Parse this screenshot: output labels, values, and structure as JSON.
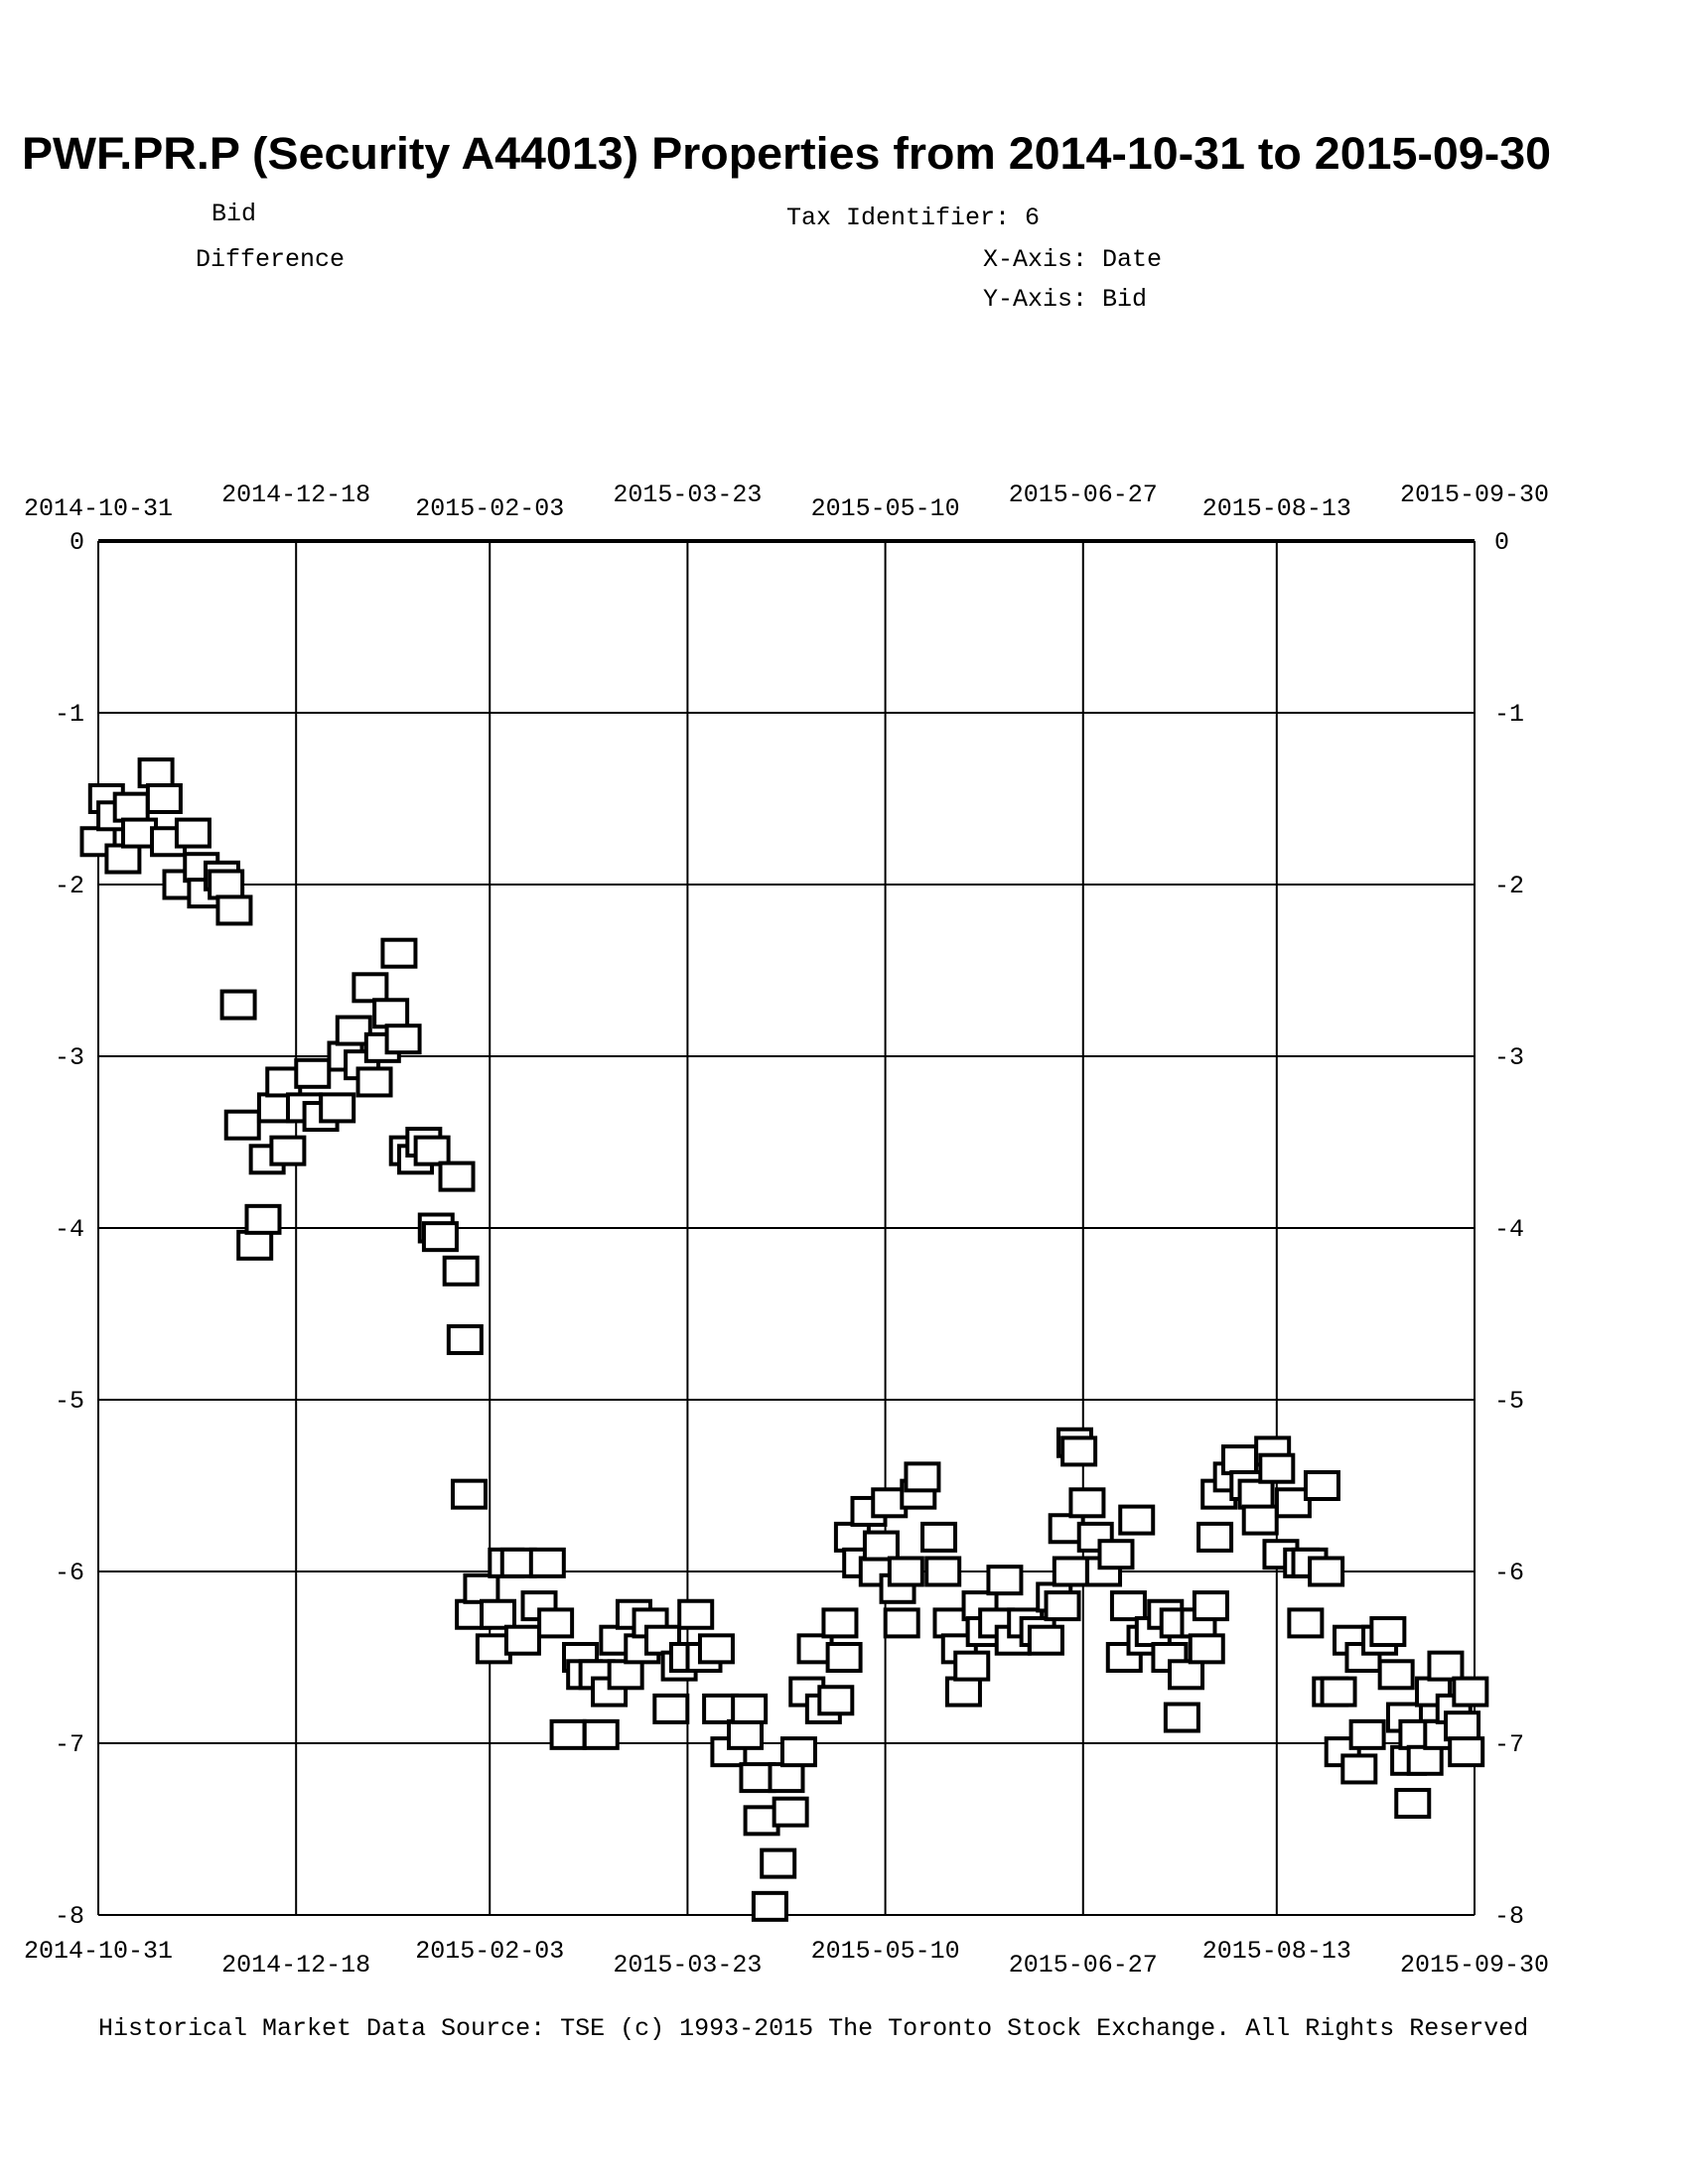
{
  "chart_data": {
    "type": "scatter",
    "title": "PWF.PR.P (Security A44013) Properties from 2014-10-31 to 2015-09-30",
    "series_label_top": "Bid",
    "series_label": "Difference",
    "tax_identifier": "Tax Identifier: 6",
    "xlabel": "X-Axis: Date",
    "ylabel": "Y-Axis:  Bid",
    "footer": "Historical Market Data Source: TSE (c) 1993-2015 The Toronto Stock Exchange. All Rights Reserved",
    "xlim": [
      "2014-10-31",
      "2015-09-30"
    ],
    "ylim": [
      -8,
      0
    ],
    "x_ticks": [
      "2014-10-31",
      "2014-12-18",
      "2015-02-03",
      "2015-03-23",
      "2015-05-10",
      "2015-06-27",
      "2015-08-13",
      "2015-09-30"
    ],
    "y_ticks": [
      "0",
      "-1",
      "-2",
      "-3",
      "-4",
      "-5",
      "-6",
      "-7",
      "-8"
    ],
    "grid": true,
    "marker": "hollow-square",
    "marker_color": "#000000",
    "points": [
      [
        "2014-10-31",
        -1.75
      ],
      [
        "2014-11-02",
        -1.5
      ],
      [
        "2014-11-04",
        -1.6
      ],
      [
        "2014-11-06",
        -1.85
      ],
      [
        "2014-11-08",
        -1.55
      ],
      [
        "2014-11-10",
        -1.7
      ],
      [
        "2014-11-14",
        -1.35
      ],
      [
        "2014-11-16",
        -1.5
      ],
      [
        "2014-11-17",
        -1.75
      ],
      [
        "2014-11-20",
        -2.0
      ],
      [
        "2014-11-23",
        -1.7
      ],
      [
        "2014-11-25",
        -1.9
      ],
      [
        "2014-11-26",
        -2.05
      ],
      [
        "2014-11-30",
        -1.95
      ],
      [
        "2014-12-01",
        -2.0
      ],
      [
        "2014-12-03",
        -2.15
      ],
      [
        "2014-12-04",
        -2.7
      ],
      [
        "2014-12-05",
        -3.4
      ],
      [
        "2014-12-08",
        -4.1
      ],
      [
        "2014-12-10",
        -3.95
      ],
      [
        "2014-12-11",
        -3.6
      ],
      [
        "2014-12-13",
        -3.3
      ],
      [
        "2014-12-15",
        -3.15
      ],
      [
        "2014-12-16",
        -3.55
      ],
      [
        "2014-12-20",
        -3.3
      ],
      [
        "2014-12-22",
        -3.1
      ],
      [
        "2014-12-24",
        -3.35
      ],
      [
        "2014-12-28",
        -3.3
      ],
      [
        "2014-12-30",
        -3.0
      ],
      [
        "2015-01-01",
        -2.85
      ],
      [
        "2015-01-03",
        -3.05
      ],
      [
        "2015-01-05",
        -2.6
      ],
      [
        "2015-01-06",
        -3.15
      ],
      [
        "2015-01-08",
        -2.95
      ],
      [
        "2015-01-10",
        -2.75
      ],
      [
        "2015-01-12",
        -2.4
      ],
      [
        "2015-01-13",
        -2.9
      ],
      [
        "2015-01-14",
        -3.55
      ],
      [
        "2015-01-16",
        -3.6
      ],
      [
        "2015-01-18",
        -3.5
      ],
      [
        "2015-01-20",
        -3.55
      ],
      [
        "2015-01-21",
        -4.0
      ],
      [
        "2015-01-22",
        -4.05
      ],
      [
        "2015-01-26",
        -3.7
      ],
      [
        "2015-01-27",
        -4.25
      ],
      [
        "2015-01-28",
        -4.65
      ],
      [
        "2015-01-29",
        -5.55
      ],
      [
        "2015-01-30",
        -6.25
      ],
      [
        "2015-02-01",
        -6.1
      ],
      [
        "2015-02-04",
        -6.45
      ],
      [
        "2015-02-05",
        -6.25
      ],
      [
        "2015-02-07",
        -5.95
      ],
      [
        "2015-02-10",
        -5.95
      ],
      [
        "2015-02-11",
        -6.4
      ],
      [
        "2015-02-15",
        -6.2
      ],
      [
        "2015-02-17",
        -5.95
      ],
      [
        "2015-02-19",
        -6.3
      ],
      [
        "2015-02-22",
        -6.95
      ],
      [
        "2015-02-25",
        -6.5
      ],
      [
        "2015-02-26",
        -6.6
      ],
      [
        "2015-03-01",
        -6.6
      ],
      [
        "2015-03-02",
        -6.95
      ],
      [
        "2015-03-04",
        -6.7
      ],
      [
        "2015-03-06",
        -6.4
      ],
      [
        "2015-03-08",
        -6.6
      ],
      [
        "2015-03-10",
        -6.25
      ],
      [
        "2015-03-12",
        -6.45
      ],
      [
        "2015-03-14",
        -6.3
      ],
      [
        "2015-03-17",
        -6.4
      ],
      [
        "2015-03-19",
        -6.8
      ],
      [
        "2015-03-21",
        -6.55
      ],
      [
        "2015-03-23",
        -6.5
      ],
      [
        "2015-03-25",
        -6.25
      ],
      [
        "2015-03-27",
        -6.5
      ],
      [
        "2015-03-30",
        -6.45
      ],
      [
        "2015-03-31",
        -6.8
      ],
      [
        "2015-04-02",
        -7.05
      ],
      [
        "2015-04-06",
        -6.95
      ],
      [
        "2015-04-07",
        -6.8
      ],
      [
        "2015-04-09",
        -7.2
      ],
      [
        "2015-04-10",
        -7.45
      ],
      [
        "2015-04-12",
        -7.95
      ],
      [
        "2015-04-14",
        -7.7
      ],
      [
        "2015-04-16",
        -7.2
      ],
      [
        "2015-04-17",
        -7.4
      ],
      [
        "2015-04-19",
        -7.05
      ],
      [
        "2015-04-21",
        -6.7
      ],
      [
        "2015-04-23",
        -6.45
      ],
      [
        "2015-04-25",
        -6.8
      ],
      [
        "2015-04-28",
        -6.75
      ],
      [
        "2015-04-29",
        -6.3
      ],
      [
        "2015-04-30",
        -6.5
      ],
      [
        "2015-05-02",
        -5.8
      ],
      [
        "2015-05-04",
        -5.95
      ],
      [
        "2015-05-06",
        -5.65
      ],
      [
        "2015-05-08",
        -6.0
      ],
      [
        "2015-05-09",
        -5.85
      ],
      [
        "2015-05-11",
        -5.6
      ],
      [
        "2015-05-13",
        -6.1
      ],
      [
        "2015-05-14",
        -6.3
      ],
      [
        "2015-05-15",
        -6.0
      ],
      [
        "2015-05-18",
        -5.55
      ],
      [
        "2015-05-19",
        -5.45
      ],
      [
        "2015-05-23",
        -5.8
      ],
      [
        "2015-05-24",
        -6.0
      ],
      [
        "2015-05-26",
        -6.3
      ],
      [
        "2015-05-28",
        -6.45
      ],
      [
        "2015-05-29",
        -6.7
      ],
      [
        "2015-05-31",
        -6.55
      ],
      [
        "2015-06-02",
        -6.2
      ],
      [
        "2015-06-03",
        -6.35
      ],
      [
        "2015-06-06",
        -6.3
      ],
      [
        "2015-06-08",
        -6.05
      ],
      [
        "2015-06-10",
        -6.4
      ],
      [
        "2015-06-13",
        -6.3
      ],
      [
        "2015-06-16",
        -6.35
      ],
      [
        "2015-06-18",
        -6.4
      ],
      [
        "2015-06-20",
        -6.15
      ],
      [
        "2015-06-22",
        -6.2
      ],
      [
        "2015-06-23",
        -5.75
      ],
      [
        "2015-06-24",
        -6.0
      ],
      [
        "2015-06-25",
        -5.25
      ],
      [
        "2015-06-26",
        -5.3
      ],
      [
        "2015-06-28",
        -5.6
      ],
      [
        "2015-06-30",
        -5.8
      ],
      [
        "2015-07-02",
        -6.0
      ],
      [
        "2015-07-05",
        -5.9
      ],
      [
        "2015-07-07",
        -6.5
      ],
      [
        "2015-07-08",
        -6.2
      ],
      [
        "2015-07-10",
        -5.7
      ],
      [
        "2015-07-12",
        -6.4
      ],
      [
        "2015-07-14",
        -6.35
      ],
      [
        "2015-07-17",
        -6.25
      ],
      [
        "2015-07-18",
        -6.5
      ],
      [
        "2015-07-20",
        -6.3
      ],
      [
        "2015-07-21",
        -6.85
      ],
      [
        "2015-07-22",
        -6.6
      ],
      [
        "2015-07-25",
        -6.3
      ],
      [
        "2015-07-27",
        -6.45
      ],
      [
        "2015-07-28",
        -6.2
      ],
      [
        "2015-07-29",
        -5.8
      ],
      [
        "2015-07-30",
        -5.55
      ],
      [
        "2015-08-02",
        -5.45
      ],
      [
        "2015-08-04",
        -5.35
      ],
      [
        "2015-08-06",
        -5.5
      ],
      [
        "2015-08-08",
        -5.55
      ],
      [
        "2015-08-09",
        -5.7
      ],
      [
        "2015-08-12",
        -5.3
      ],
      [
        "2015-08-13",
        -5.4
      ],
      [
        "2015-08-14",
        -5.9
      ],
      [
        "2015-08-17",
        -5.6
      ],
      [
        "2015-08-19",
        -5.95
      ],
      [
        "2015-08-20",
        -6.3
      ],
      [
        "2015-08-21",
        -5.95
      ],
      [
        "2015-08-24",
        -5.5
      ],
      [
        "2015-08-25",
        -6.0
      ],
      [
        "2015-08-26",
        -6.7
      ],
      [
        "2015-08-28",
        -6.7
      ],
      [
        "2015-08-29",
        -7.05
      ],
      [
        "2015-08-31",
        -6.4
      ],
      [
        "2015-09-02",
        -7.15
      ],
      [
        "2015-09-03",
        -6.5
      ],
      [
        "2015-09-04",
        -6.95
      ],
      [
        "2015-09-07",
        -6.4
      ],
      [
        "2015-09-09",
        -6.35
      ],
      [
        "2015-09-11",
        -6.6
      ],
      [
        "2015-09-13",
        -6.85
      ],
      [
        "2015-09-14",
        -7.1
      ],
      [
        "2015-09-15",
        -7.35
      ],
      [
        "2015-09-16",
        -6.95
      ],
      [
        "2015-09-18",
        -7.1
      ],
      [
        "2015-09-20",
        -6.7
      ],
      [
        "2015-09-22",
        -6.95
      ],
      [
        "2015-09-23",
        -6.55
      ],
      [
        "2015-09-25",
        -6.8
      ],
      [
        "2015-09-27",
        -6.9
      ],
      [
        "2015-09-28",
        -7.05
      ],
      [
        "2015-09-29",
        -6.7
      ]
    ]
  }
}
